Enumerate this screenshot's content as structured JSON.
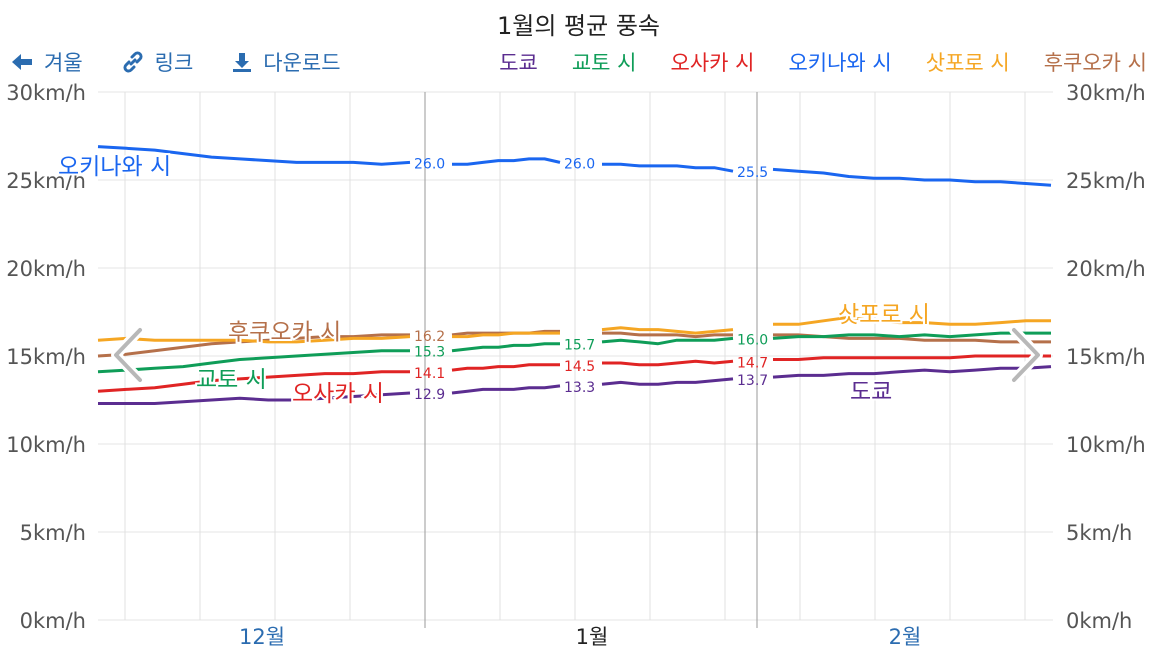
{
  "title": "1월의 평균 풍속",
  "toolbar": {
    "back_label": "겨울",
    "link_label": "링크",
    "download_label": "다운로드"
  },
  "colors": {
    "도쿄": "#5b2d90",
    "교토 시": "#0f9d58",
    "오사카 시": "#e02424",
    "오키나와 시": "#1a66f0",
    "삿포로 시": "#f5a623",
    "후쿠오카 시": "#b5704a",
    "blue_text": "#2b6cb0"
  },
  "chart_data": {
    "type": "line",
    "title": "1월의 평균 풍속",
    "ylim": [
      0,
      30
    ],
    "y_ticks": [
      "0km/h",
      "5km/h",
      "10km/h",
      "15km/h",
      "20km/h",
      "25km/h",
      "30km/h"
    ],
    "x_tick_labels": [
      "12월",
      "1월",
      "2월"
    ],
    "grid": true,
    "legend_placement": "top",
    "series": [
      {
        "name": "도쿄",
        "color": "#5b2d90",
        "inline_label": "도쿄",
        "segments": [
          {
            "label": "12.9",
            "values": [
              12.3,
              12.3,
              12.3,
              12.4,
              12.5,
              12.6,
              12.5,
              12.5,
              12.6,
              12.7,
              12.8,
              12.9
            ]
          },
          {
            "label": "13.3",
            "values": [
              12.9,
              13.0,
              13.1,
              13.1,
              13.1,
              13.2,
              13.2,
              13.3
            ]
          },
          {
            "label": "13.7",
            "values": [
              13.4,
              13.5,
              13.4,
              13.4,
              13.5,
              13.5,
              13.6,
              13.7
            ]
          },
          {
            "label": "",
            "values": [
              13.8,
              13.9,
              13.9,
              14.0,
              14.0,
              14.1,
              14.2,
              14.1,
              14.2,
              14.3,
              14.3,
              14.4
            ]
          }
        ]
      },
      {
        "name": "교토 시",
        "color": "#0f9d58",
        "inline_label": "교토 시",
        "segments": [
          {
            "label": "15.3",
            "values": [
              14.1,
              14.2,
              14.3,
              14.4,
              14.6,
              14.8,
              14.9,
              15.0,
              15.1,
              15.2,
              15.3,
              15.3
            ]
          },
          {
            "label": "15.7",
            "values": [
              15.3,
              15.4,
              15.5,
              15.5,
              15.6,
              15.6,
              15.7,
              15.7
            ]
          },
          {
            "label": "16.0",
            "values": [
              15.8,
              15.9,
              15.8,
              15.7,
              15.9,
              15.9,
              15.9,
              16.0
            ]
          },
          {
            "label": "",
            "values": [
              16.0,
              16.1,
              16.1,
              16.2,
              16.2,
              16.1,
              16.2,
              16.1,
              16.2,
              16.3,
              16.3,
              16.3
            ]
          }
        ]
      },
      {
        "name": "오사카 시",
        "color": "#e02424",
        "inline_label": "오사카 시",
        "segments": [
          {
            "label": "14.1",
            "values": [
              13.0,
              13.1,
              13.2,
              13.4,
              13.6,
              13.7,
              13.8,
              13.9,
              14.0,
              14.0,
              14.1,
              14.1
            ]
          },
          {
            "label": "14.5",
            "values": [
              14.2,
              14.3,
              14.3,
              14.4,
              14.4,
              14.5,
              14.5,
              14.5
            ]
          },
          {
            "label": "14.7",
            "values": [
              14.6,
              14.6,
              14.5,
              14.5,
              14.6,
              14.7,
              14.6,
              14.7
            ]
          },
          {
            "label": "",
            "values": [
              14.8,
              14.8,
              14.9,
              14.9,
              14.9,
              14.9,
              14.9,
              14.9,
              15.0,
              15.0,
              15.0,
              15.0
            ]
          }
        ]
      },
      {
        "name": "오키나와 시",
        "color": "#1a66f0",
        "inline_label": "오키나와 시",
        "segments": [
          {
            "label": "26.0",
            "values": [
              26.9,
              26.8,
              26.7,
              26.5,
              26.3,
              26.2,
              26.1,
              26.0,
              26.0,
              26.0,
              25.9,
              26.0
            ]
          },
          {
            "label": "26.0",
            "values": [
              25.9,
              25.9,
              26.0,
              26.1,
              26.1,
              26.2,
              26.2,
              26.0
            ]
          },
          {
            "label": "25.5",
            "values": [
              25.9,
              25.9,
              25.8,
              25.8,
              25.8,
              25.7,
              25.7,
              25.5
            ]
          },
          {
            "label": "",
            "values": [
              25.6,
              25.5,
              25.4,
              25.2,
              25.1,
              25.1,
              25.0,
              25.0,
              24.9,
              24.9,
              24.8,
              24.7
            ]
          }
        ]
      },
      {
        "name": "삿포로 시",
        "color": "#f5a623",
        "inline_label": "삿포로 시",
        "segments": [
          {
            "label": "",
            "values": [
              15.9,
              16.0,
              15.9,
              15.9,
              15.9,
              15.9,
              15.8,
              15.8,
              15.9,
              16.0,
              16.0,
              16.1
            ]
          },
          {
            "label": "",
            "values": [
              16.1,
              16.1,
              16.2,
              16.2,
              16.3,
              16.3,
              16.3,
              16.3
            ]
          },
          {
            "label": "",
            "values": [
              16.5,
              16.6,
              16.5,
              16.5,
              16.4,
              16.3,
              16.4,
              16.5
            ]
          },
          {
            "label": "",
            "values": [
              16.8,
              16.8,
              17.0,
              17.2,
              17.0,
              16.9,
              16.9,
              16.8,
              16.8,
              16.9,
              17.0,
              17.0
            ]
          }
        ]
      },
      {
        "name": "후쿠오카 시",
        "color": "#b5704a",
        "inline_label": "후쿠오카 시",
        "segments": [
          {
            "label": "16.2",
            "values": [
              15.0,
              15.1,
              15.3,
              15.5,
              15.7,
              15.8,
              15.9,
              16.0,
              16.1,
              16.1,
              16.2,
              16.2
            ]
          },
          {
            "label": "",
            "values": [
              16.2,
              16.3,
              16.3,
              16.3,
              16.3,
              16.3,
              16.4,
              16.4
            ]
          },
          {
            "label": "",
            "values": [
              16.3,
              16.3,
              16.2,
              16.2,
              16.2,
              16.1,
              16.2,
              16.2
            ]
          },
          {
            "label": "",
            "values": [
              16.2,
              16.2,
              16.1,
              16.0,
              16.0,
              16.0,
              15.9,
              15.9,
              15.9,
              15.8,
              15.8,
              15.8
            ]
          }
        ]
      }
    ]
  }
}
